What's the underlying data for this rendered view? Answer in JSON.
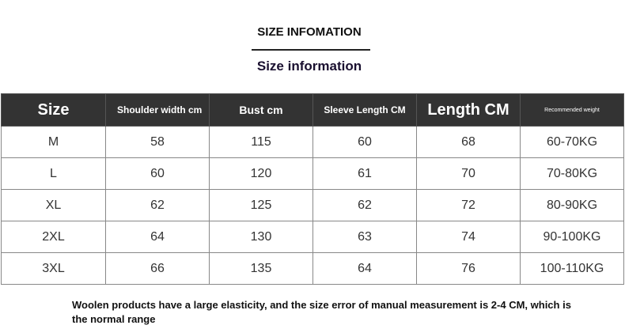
{
  "header": {
    "title": "SIZE INFOMATION",
    "subtitle": "Size information"
  },
  "table": {
    "columns": [
      "Size",
      "Shoulder width cm",
      "Bust cm",
      "Sleeve Length CM",
      "Length CM",
      "Recommended weight"
    ],
    "rows": [
      [
        "M",
        58,
        115,
        60,
        68,
        "60-70KG"
      ],
      [
        "L",
        60,
        120,
        61,
        70,
        "70-80KG"
      ],
      [
        "XL",
        62,
        125,
        62,
        72,
        "80-90KG"
      ],
      [
        "2XL",
        64,
        130,
        63,
        74,
        "90-100KG"
      ],
      [
        "3XL",
        66,
        135,
        64,
        76,
        "100-110KG"
      ]
    ]
  },
  "note": "Woolen products have a large elasticity, and the size error of manual measurement is 2-4 CM, which is the normal range"
}
